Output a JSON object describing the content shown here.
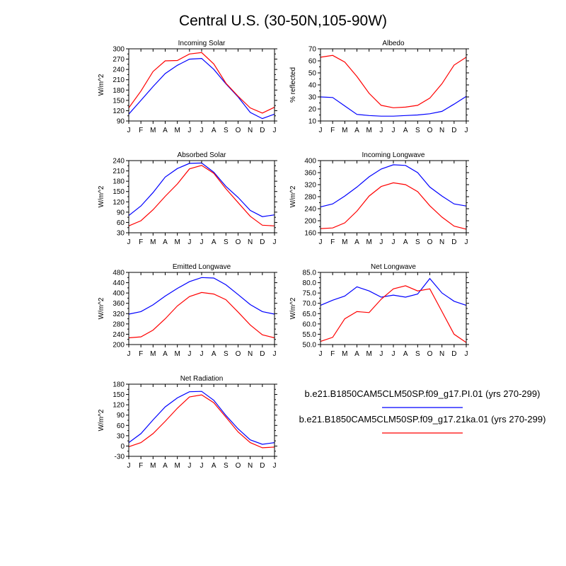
{
  "page_title": "Central U.S. (30-50N,105-90W)",
  "legend": [
    {
      "label": "b.e21.B1850CAM5CLM50SP.f09_g17.PI.01 (yrs 270-299)",
      "color": "#0000ff"
    },
    {
      "label": "b.e21.B1850CAM5CLM50SP.f09_g17.21ka.01 (yrs 270-299)",
      "color": "#ff0000"
    }
  ],
  "chart_data": [
    {
      "type": "line",
      "title": "Incoming Solar",
      "ylabel": "W/m^2",
      "categories": [
        "J",
        "F",
        "M",
        "A",
        "M",
        "J",
        "J",
        "A",
        "S",
        "O",
        "N",
        "D",
        "J"
      ],
      "yticks": [
        90,
        120,
        150,
        180,
        210,
        240,
        270,
        300
      ],
      "ylim": [
        90,
        300
      ],
      "ytick_decimals": 0,
      "series": [
        {
          "color": "#0000ff",
          "values": [
            110,
            150,
            190,
            228,
            252,
            270,
            272,
            240,
            198,
            160,
            115,
            97,
            110
          ]
        },
        {
          "color": "#ff0000",
          "values": [
            128,
            177,
            234,
            265,
            266,
            285,
            289,
            256,
            200,
            162,
            128,
            113,
            130
          ]
        }
      ]
    },
    {
      "type": "line",
      "title": "Albedo",
      "ylabel": "% reflected",
      "categories": [
        "J",
        "F",
        "M",
        "A",
        "M",
        "J",
        "J",
        "A",
        "S",
        "O",
        "N",
        "D",
        "J"
      ],
      "yticks": [
        10,
        20,
        30,
        40,
        50,
        60,
        70
      ],
      "ylim": [
        10,
        70
      ],
      "ytick_decimals": 0,
      "series": [
        {
          "color": "#0000ff",
          "values": [
            30,
            29.5,
            22.5,
            15.5,
            14.5,
            14,
            14,
            14.5,
            15,
            16,
            18,
            24,
            30.5
          ]
        },
        {
          "color": "#ff0000",
          "values": [
            63,
            64.5,
            59,
            47,
            33,
            23,
            21,
            21.5,
            23,
            29,
            41,
            56.5,
            63
          ]
        }
      ]
    },
    {
      "type": "line",
      "title": "Absorbed Solar",
      "ylabel": "W/m^2",
      "categories": [
        "J",
        "F",
        "M",
        "A",
        "M",
        "J",
        "J",
        "A",
        "S",
        "O",
        "N",
        "D",
        "J"
      ],
      "yticks": [
        30,
        60,
        90,
        120,
        150,
        180,
        210,
        240
      ],
      "ylim": [
        30,
        240
      ],
      "ytick_decimals": 0,
      "series": [
        {
          "color": "#0000ff",
          "values": [
            80,
            108,
            147,
            192,
            217,
            232,
            233,
            206,
            165,
            133,
            95,
            77,
            82
          ]
        },
        {
          "color": "#ff0000",
          "values": [
            50,
            65,
            97,
            136,
            172,
            216,
            226,
            203,
            158,
            118,
            78,
            52,
            50
          ]
        }
      ]
    },
    {
      "type": "line",
      "title": "Incoming Longwave",
      "ylabel": "W/m^2",
      "categories": [
        "J",
        "F",
        "M",
        "A",
        "M",
        "J",
        "J",
        "A",
        "S",
        "O",
        "N",
        "D",
        "J"
      ],
      "yticks": [
        160,
        200,
        240,
        280,
        320,
        360,
        400
      ],
      "ylim": [
        160,
        400
      ],
      "ytick_decimals": 0,
      "series": [
        {
          "color": "#0000ff",
          "values": [
            246,
            256,
            282,
            312,
            346,
            372,
            386,
            384,
            360,
            312,
            282,
            256,
            249
          ]
        },
        {
          "color": "#ff0000",
          "values": [
            174,
            176,
            193,
            232,
            282,
            314,
            326,
            320,
            297,
            250,
            212,
            182,
            172
          ]
        }
      ]
    },
    {
      "type": "line",
      "title": "Emitted Longwave",
      "ylabel": "W/m^2",
      "categories": [
        "J",
        "F",
        "M",
        "A",
        "M",
        "J",
        "J",
        "A",
        "S",
        "O",
        "N",
        "D",
        "J"
      ],
      "yticks": [
        200,
        240,
        280,
        320,
        360,
        400,
        440,
        480
      ],
      "ylim": [
        200,
        480
      ],
      "ytick_decimals": 0,
      "series": [
        {
          "color": "#0000ff",
          "values": [
            318,
            328,
            354,
            388,
            418,
            444,
            460,
            458,
            432,
            394,
            355,
            328,
            318
          ]
        },
        {
          "color": "#ff0000",
          "values": [
            226,
            230,
            256,
            300,
            350,
            386,
            402,
            396,
            374,
            326,
            276,
            238,
            226
          ]
        }
      ]
    },
    {
      "type": "line",
      "title": "Net Longwave",
      "ylabel": "W/m^2",
      "categories": [
        "J",
        "F",
        "M",
        "A",
        "M",
        "J",
        "J",
        "A",
        "S",
        "O",
        "N",
        "D",
        "J"
      ],
      "yticks": [
        50,
        55,
        60,
        65,
        70,
        75,
        80,
        85
      ],
      "ylim": [
        50,
        85
      ],
      "ytick_decimals": 1,
      "series": [
        {
          "color": "#0000ff",
          "values": [
            69,
            71.5,
            73.5,
            78,
            76,
            73,
            74,
            73,
            74.5,
            82,
            75,
            71,
            69
          ]
        },
        {
          "color": "#ff0000",
          "values": [
            51.5,
            53.5,
            62.5,
            66,
            65.5,
            72,
            77,
            78.5,
            76,
            77,
            66,
            55,
            51
          ]
        }
      ]
    },
    {
      "type": "line",
      "title": "Net Radiation",
      "ylabel": "W/m^2",
      "categories": [
        "J",
        "F",
        "M",
        "A",
        "M",
        "J",
        "J",
        "A",
        "S",
        "O",
        "N",
        "D",
        "J"
      ],
      "yticks": [
        -30,
        0,
        30,
        60,
        90,
        120,
        150,
        180
      ],
      "ylim": [
        -30,
        180
      ],
      "ytick_decimals": 0,
      "series": [
        {
          "color": "#0000ff",
          "values": [
            10,
            36,
            76,
            114,
            140,
            158,
            159,
            133,
            89,
            50,
            18,
            5,
            10
          ]
        },
        {
          "color": "#ff0000",
          "values": [
            -2,
            10,
            36,
            72,
            110,
            143,
            149,
            126,
            84,
            41,
            10,
            -5,
            -3
          ]
        }
      ]
    }
  ]
}
